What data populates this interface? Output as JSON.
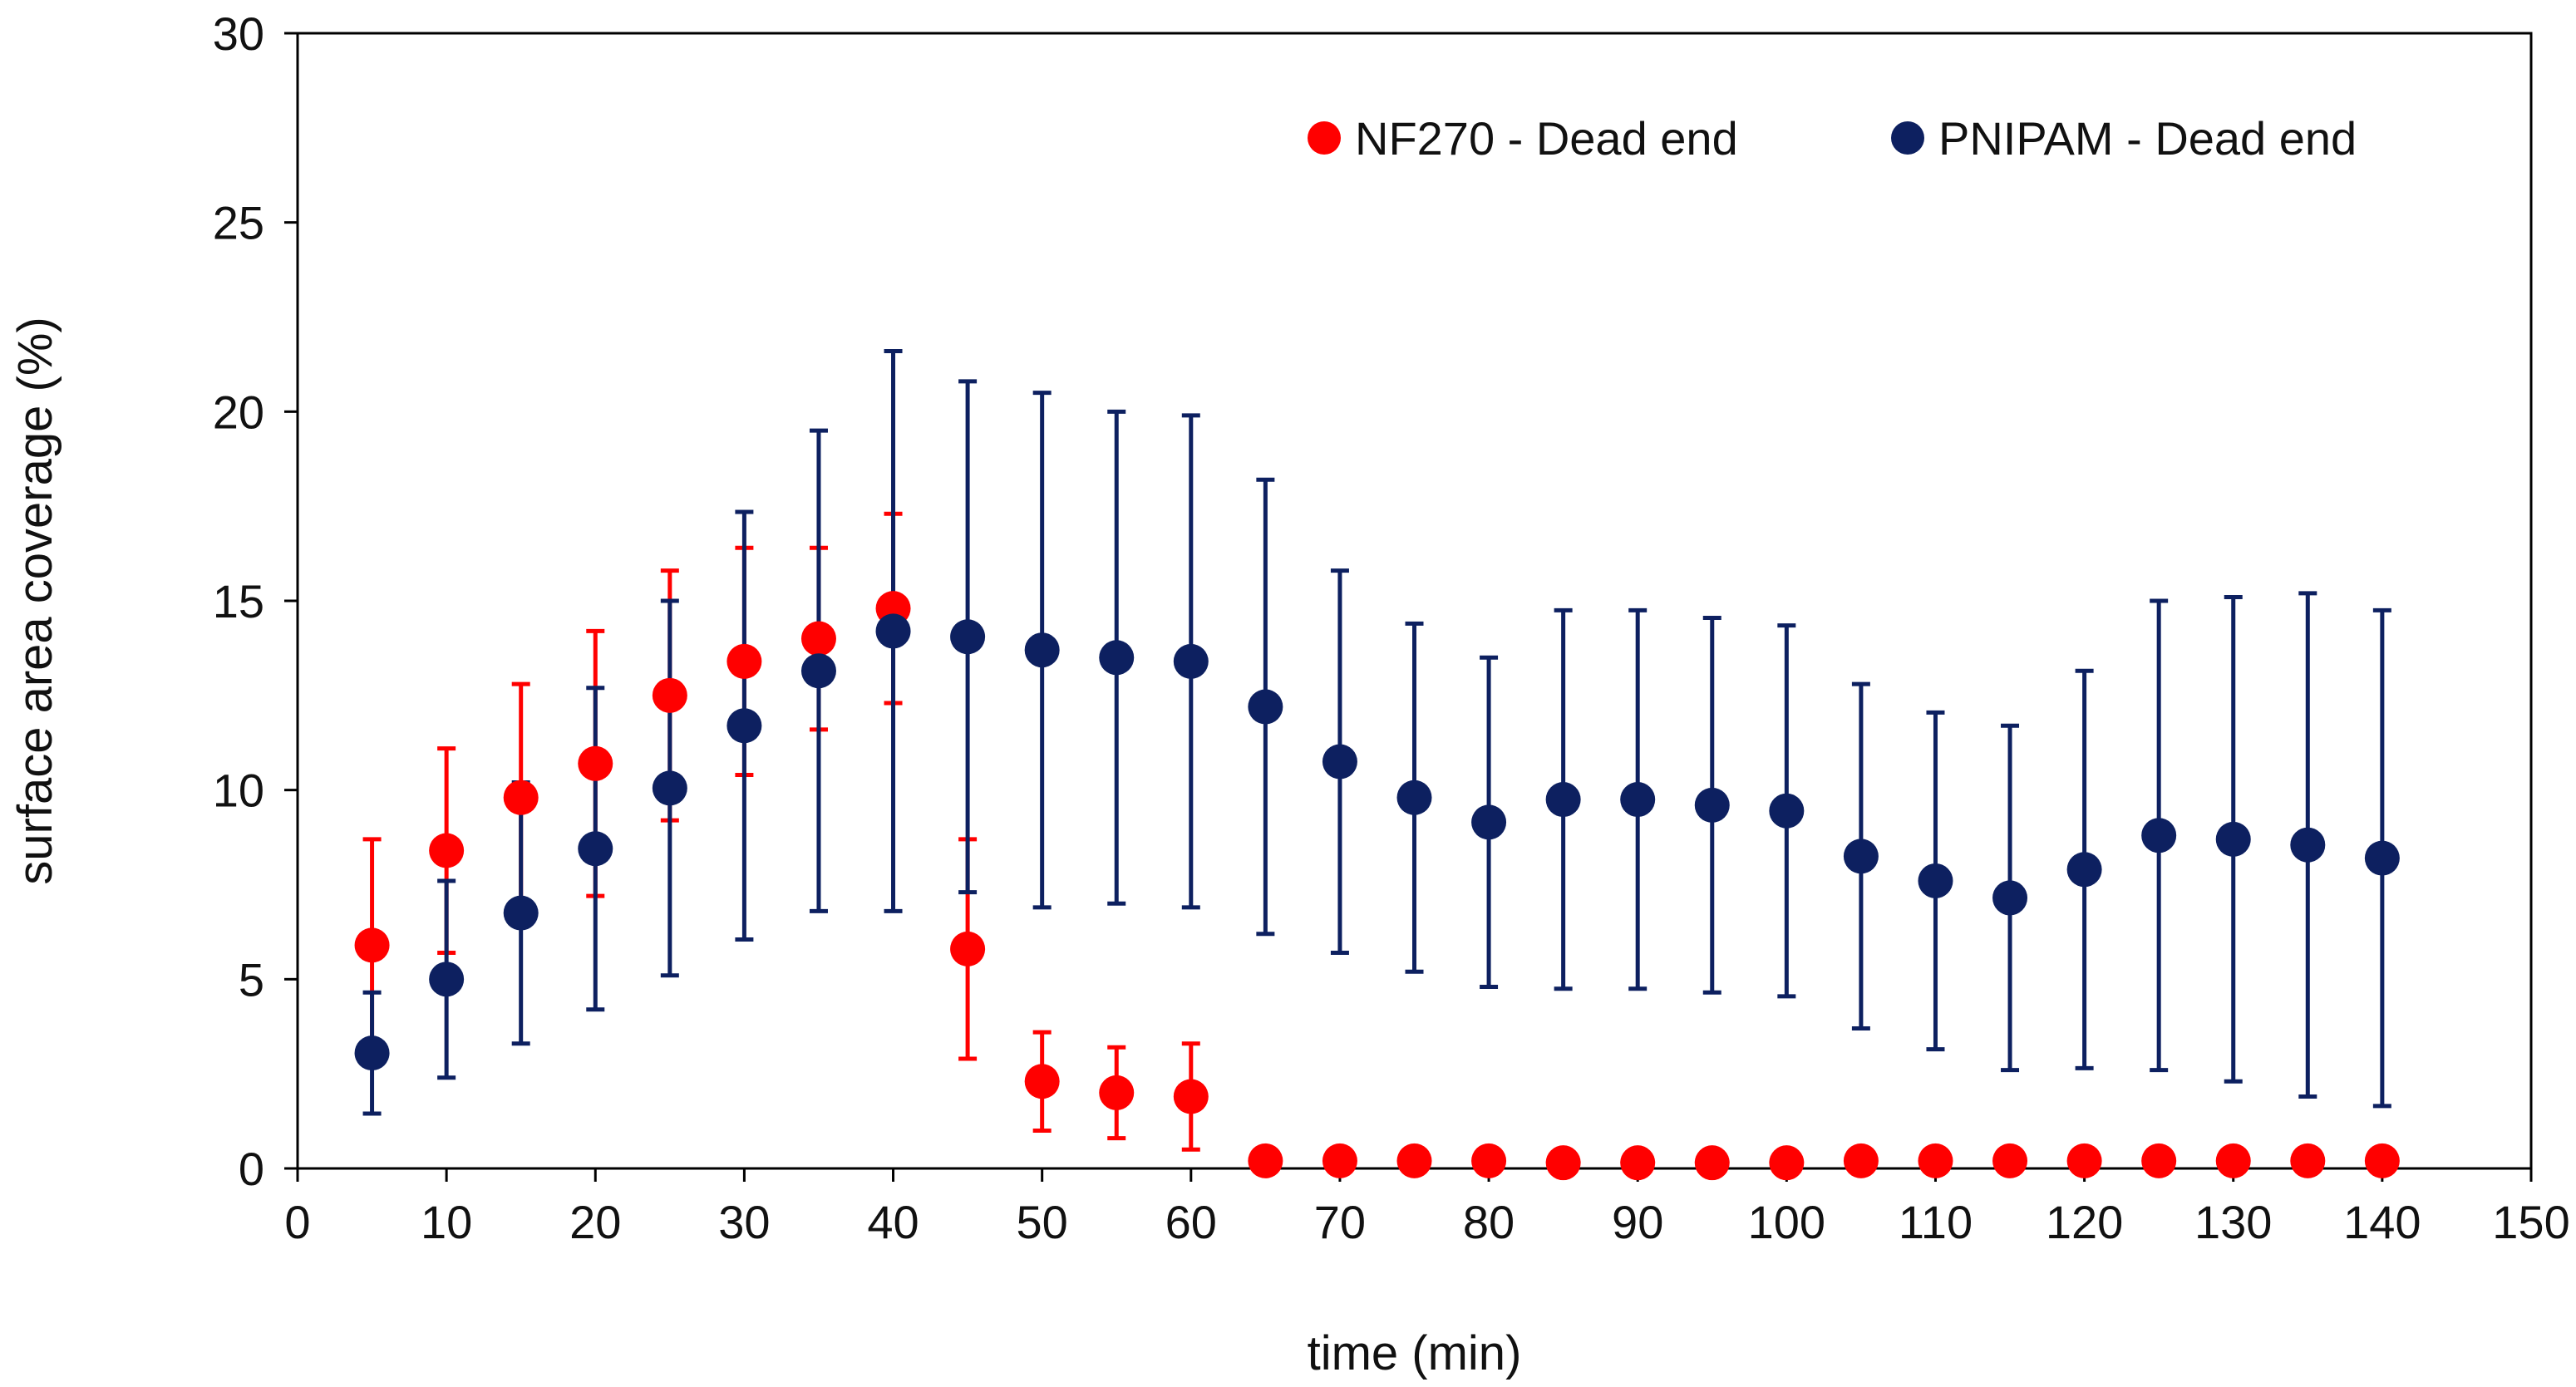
{
  "chart_data": {
    "type": "scatter",
    "title": "",
    "xlabel": "time (min)",
    "ylabel": "surface area coverage (%)",
    "xlim": [
      0,
      150
    ],
    "ylim": [
      0,
      30
    ],
    "x_ticks": [
      "0",
      "10",
      "20",
      "30",
      "40",
      "50",
      "60",
      "70",
      "80",
      "90",
      "100",
      "110",
      "120",
      "130",
      "140",
      "150"
    ],
    "y_ticks": [
      "0",
      "5",
      "10",
      "15",
      "20",
      "25",
      "30"
    ],
    "grid": false,
    "legend_position": "top-right",
    "series": [
      {
        "name": "NF270 - Dead end",
        "color": "#ff0000",
        "x": [
          5,
          10,
          15,
          20,
          25,
          30,
          35,
          40,
          45,
          50,
          55,
          60,
          65,
          70,
          75,
          80,
          85,
          90,
          95,
          100,
          105,
          110,
          115,
          120,
          125,
          130,
          135,
          140
        ],
        "y": [
          5.9,
          8.4,
          9.8,
          10.7,
          12.5,
          13.4,
          14.0,
          14.8,
          5.8,
          2.3,
          2.0,
          1.9,
          0.2,
          0.2,
          0.2,
          0.2,
          0.15,
          0.15,
          0.15,
          0.15,
          0.2,
          0.2,
          0.2,
          0.2,
          0.2,
          0.2,
          0.2,
          0.2
        ],
        "err": [
          2.8,
          2.7,
          3.0,
          3.5,
          3.3,
          3.0,
          2.4,
          2.5,
          2.9,
          1.3,
          1.2,
          1.4,
          0.1,
          0.1,
          0.1,
          0.1,
          0.05,
          0.05,
          0.05,
          0.05,
          0.15,
          0.2,
          0.1,
          0.3,
          0.1,
          0.1,
          0.1,
          0.1
        ]
      },
      {
        "name": "PNIPAM - Dead end",
        "color": "#0d2060",
        "x": [
          5,
          10,
          15,
          20,
          25,
          30,
          35,
          40,
          45,
          50,
          55,
          60,
          65,
          70,
          75,
          80,
          85,
          90,
          95,
          100,
          105,
          110,
          115,
          120,
          125,
          130,
          135,
          140
        ],
        "y": [
          3.05,
          5.0,
          6.75,
          8.45,
          10.05,
          11.7,
          13.15,
          14.2,
          14.05,
          13.7,
          13.5,
          13.4,
          12.2,
          10.75,
          9.8,
          9.15,
          9.75,
          9.75,
          9.6,
          9.45,
          8.25,
          7.6,
          7.15,
          7.9,
          8.8,
          8.7,
          8.55,
          8.2
        ],
        "err": [
          1.6,
          2.6,
          3.45,
          4.25,
          4.95,
          5.65,
          6.35,
          7.4,
          6.75,
          6.8,
          6.5,
          6.5,
          6.0,
          5.05,
          4.6,
          4.35,
          5.0,
          5.0,
          4.95,
          4.9,
          4.55,
          4.45,
          4.55,
          5.25,
          6.2,
          6.4,
          6.65,
          6.55
        ]
      }
    ]
  }
}
